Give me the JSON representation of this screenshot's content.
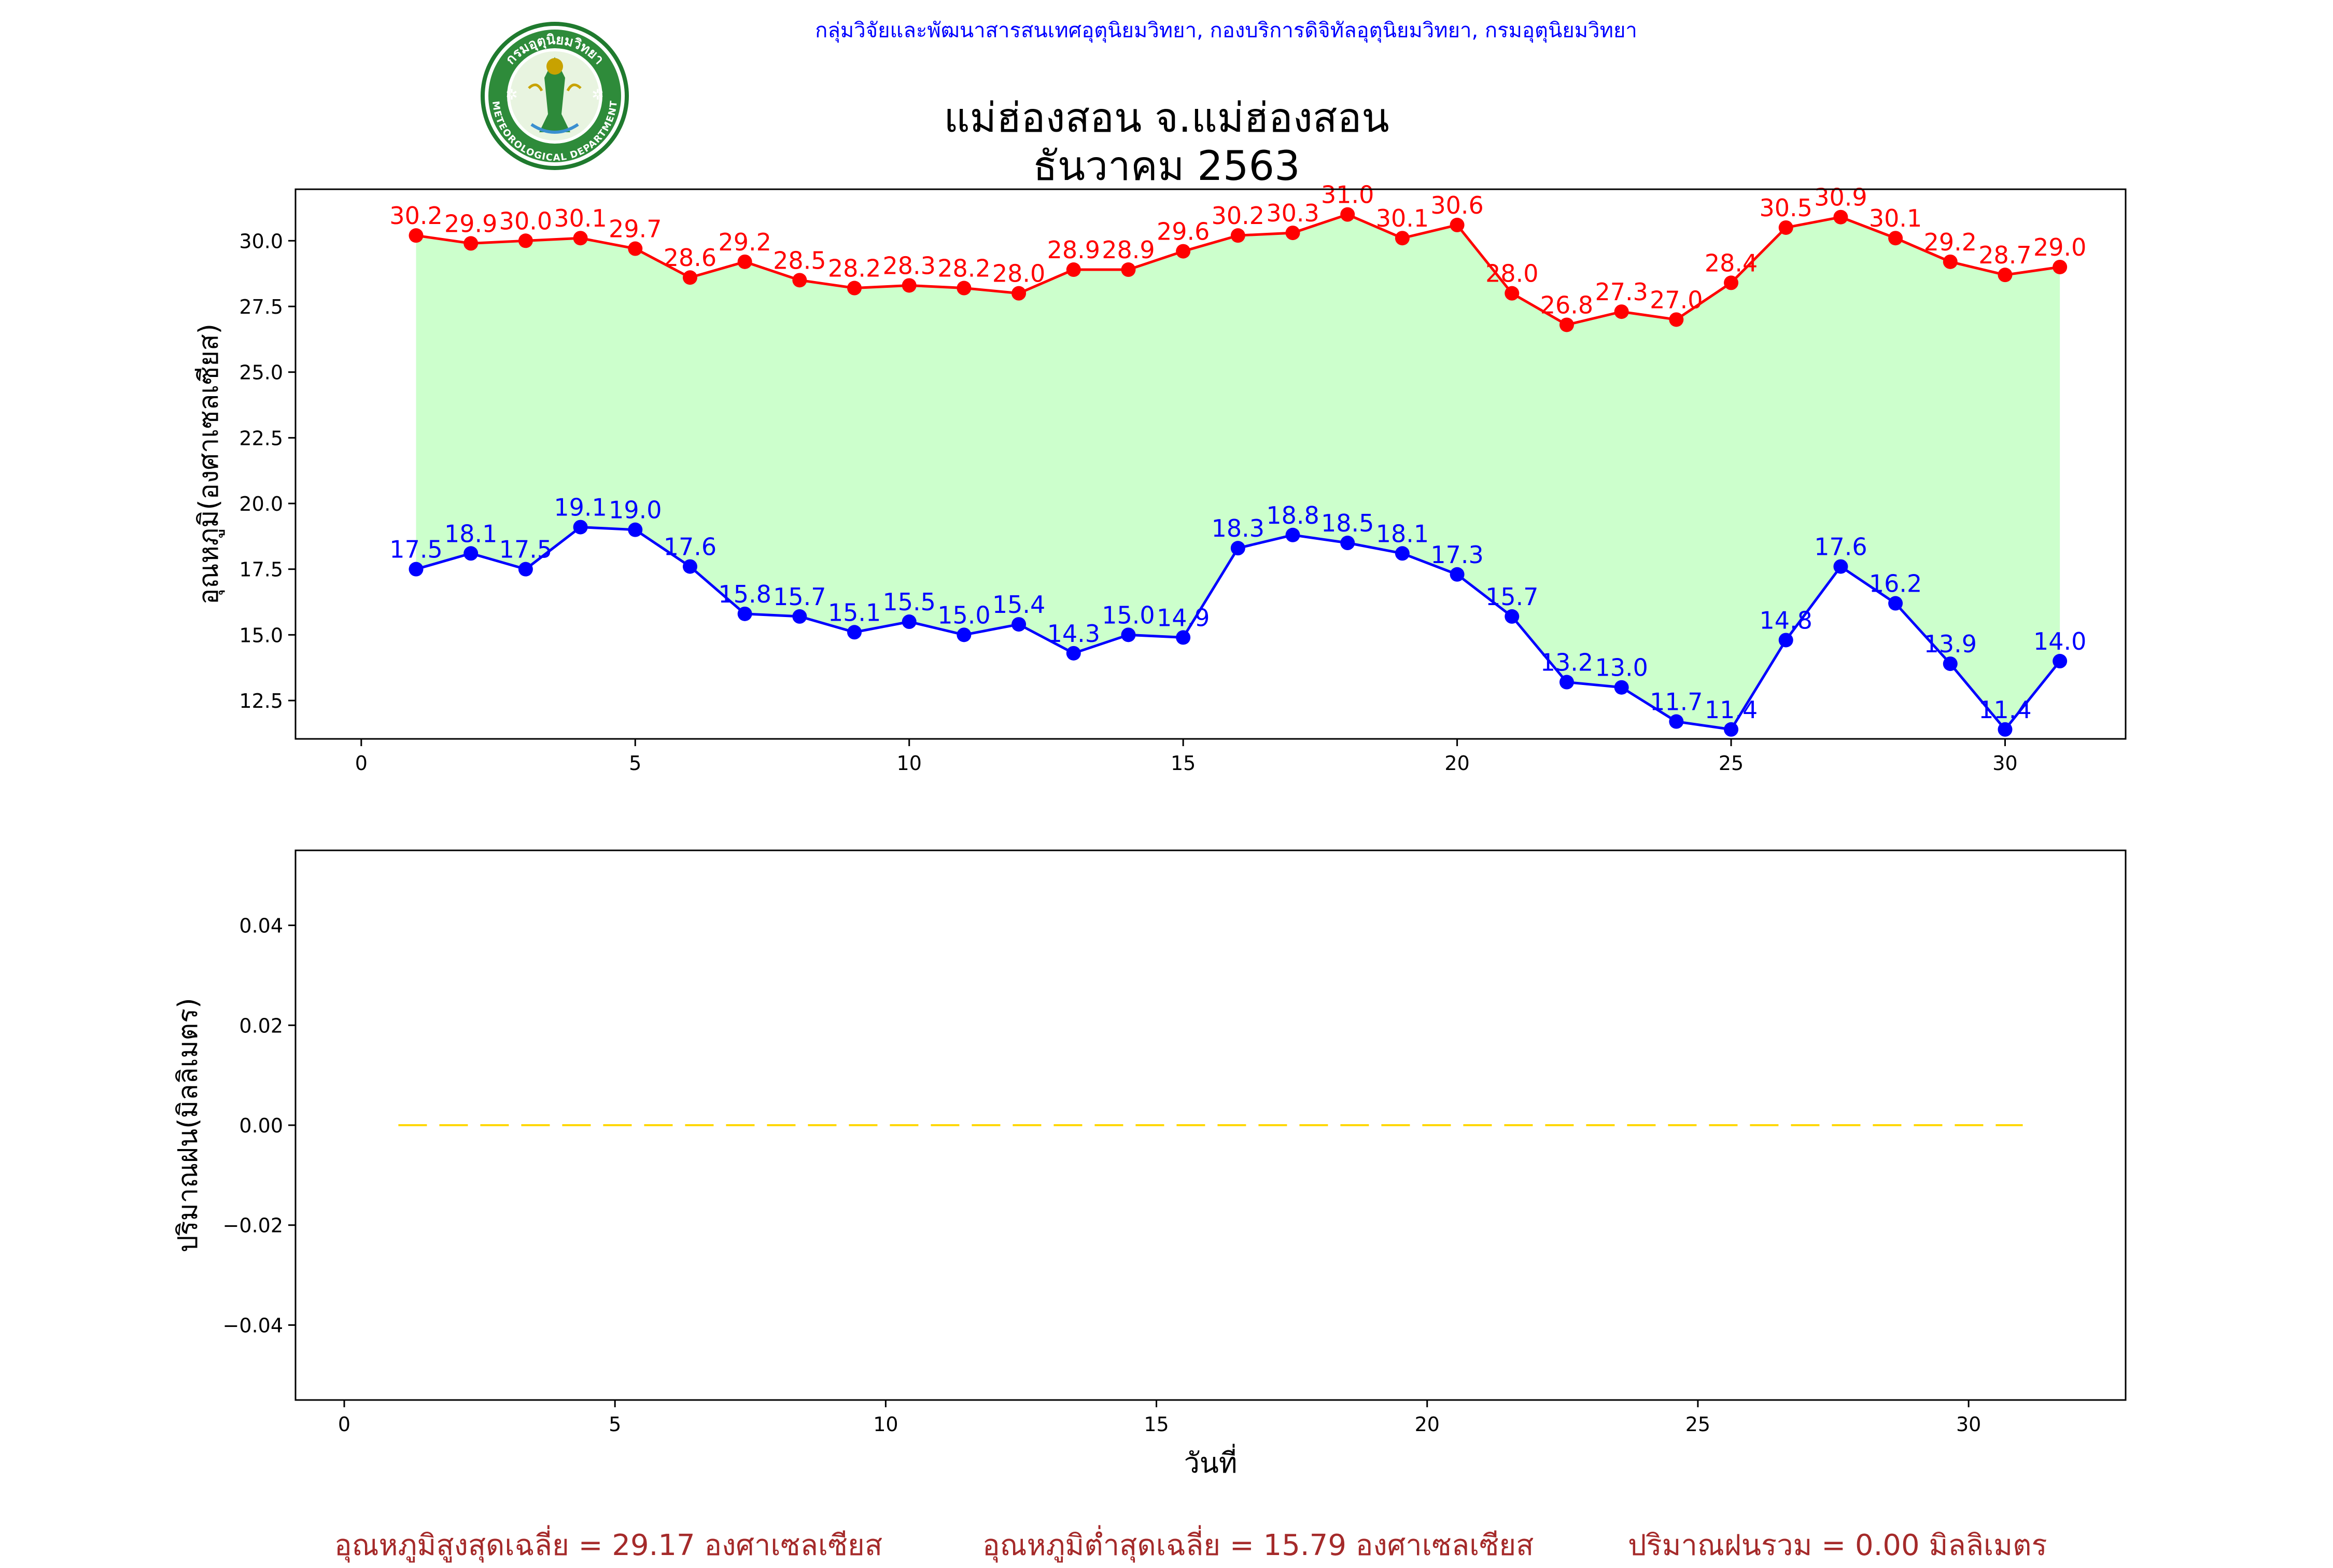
{
  "header": {
    "department": "กลุ่มวิจัยและพัฒนาสารสนเทศอุตุนิยมวิทยา, กองบริการดิจิทัลอุตุนิยมวิทยา, กรมอุตุนิยมวิทยา",
    "station": "แม่ฮ่องสอน จ.แม่ฮ่องสอน",
    "month": "ธันวาคม 2563",
    "logo": {
      "label_top": "กรมอุตุนิยมวิทยา",
      "label_bottom": "METEOROLOGICAL DEPARTMENT"
    }
  },
  "colors": {
    "max": "#ff0000",
    "min": "#0000ff",
    "fill": "#ccffcc",
    "rain": "#ffd700",
    "footer": "#a52a2a"
  },
  "chart_data": [
    {
      "type": "line",
      "ylabel": "อุณหภูมิ(องศาเซลเซียส)",
      "x": [
        1,
        2,
        3,
        4,
        5,
        6,
        7,
        8,
        9,
        10,
        11,
        12,
        13,
        14,
        15,
        16,
        17,
        18,
        19,
        20,
        21,
        22,
        23,
        24,
        25,
        26,
        27,
        28,
        29,
        30,
        31
      ],
      "series": [
        {
          "key": "max",
          "values": [
            30.2,
            29.9,
            30.0,
            30.1,
            29.7,
            28.6,
            29.2,
            28.5,
            28.2,
            28.3,
            28.2,
            28.0,
            28.9,
            28.9,
            29.6,
            30.2,
            30.3,
            31.0,
            30.1,
            30.6,
            28.0,
            26.8,
            27.3,
            27.0,
            28.4,
            30.5,
            30.9,
            30.1,
            29.2,
            28.7,
            29.0
          ]
        },
        {
          "key": "min",
          "values": [
            17.5,
            18.1,
            17.5,
            19.1,
            19.0,
            17.6,
            15.8,
            15.7,
            15.1,
            15.5,
            15.0,
            15.4,
            14.3,
            15.0,
            14.9,
            18.3,
            18.8,
            18.5,
            18.1,
            17.3,
            15.7,
            13.2,
            13.0,
            11.7,
            11.4,
            14.8,
            17.6,
            16.2,
            13.9,
            11.4,
            14.0
          ]
        }
      ],
      "xlim": [
        -1.2,
        32.2
      ],
      "ylim": [
        11.04,
        31.96
      ],
      "xticks": [
        0,
        5,
        10,
        15,
        20,
        25,
        30
      ],
      "yticks": [
        12.5,
        15.0,
        17.5,
        20.0,
        22.5,
        25.0,
        27.5,
        30.0
      ],
      "fill_between": true
    },
    {
      "type": "line",
      "xlabel": "วันที่",
      "ylabel": "ปริมาณฝน(มิลลิเมตร)",
      "x": [
        1,
        2,
        3,
        4,
        5,
        6,
        7,
        8,
        9,
        10,
        11,
        12,
        13,
        14,
        15,
        16,
        17,
        18,
        19,
        20,
        21,
        22,
        23,
        24,
        25,
        26,
        27,
        28,
        29,
        30,
        31
      ],
      "series": [
        {
          "key": "rain",
          "values": [
            0,
            0,
            0,
            0,
            0,
            0,
            0,
            0,
            0,
            0,
            0,
            0,
            0,
            0,
            0,
            0,
            0,
            0,
            0,
            0,
            0,
            0,
            0,
            0,
            0,
            0,
            0,
            0,
            0,
            0,
            0
          ],
          "style": "dashed"
        }
      ],
      "xlim": [
        -0.9,
        32.9
      ],
      "ylim": [
        -0.055,
        0.055
      ],
      "xticks": [
        0,
        5,
        10,
        15,
        20,
        25,
        30
      ],
      "yticks": [
        -0.04,
        -0.02,
        0.0,
        0.02,
        0.04
      ]
    }
  ],
  "footer": {
    "avg_max": "อุณหภูมิสูงสุดเฉลี่ย = 29.17 องศาเซลเซียส",
    "avg_min": "อุณหภูมิต่ำสุดเฉลี่ย = 15.79 องศาเซลเซียส",
    "total_rain": "ปริมาณฝนรวม = 0.00 มิลลิเมตร"
  }
}
